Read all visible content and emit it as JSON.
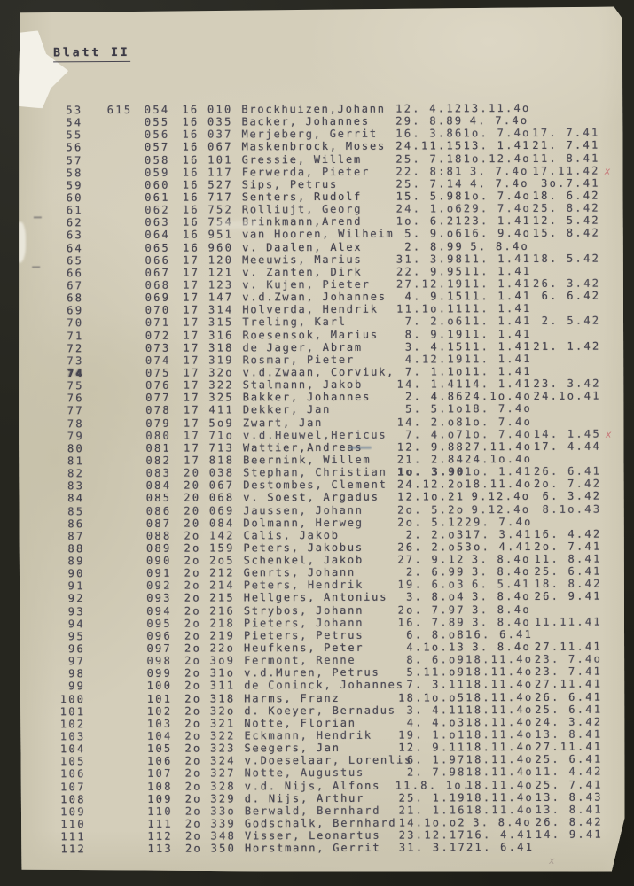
{
  "page": {
    "title": "Blatt II"
  },
  "marks": {
    "red_x": "x",
    "faint_x": "x"
  },
  "table": {
    "rows": [
      {
        "seq": "53",
        "extra": "615",
        "serial": "054",
        "camp": "16 010",
        "name": "Brockhuizen,Johann",
        "born": "12. 4.12",
        "d2": "13.11.4o",
        "d3": ""
      },
      {
        "seq": "54",
        "extra": "",
        "serial": "055",
        "camp": "16 035",
        "name": "Backer, Johannes",
        "born": "29. 8.89",
        "d2": "4. 7.4o",
        "d3": ""
      },
      {
        "seq": "55",
        "extra": "",
        "serial": "056",
        "camp": "16 037",
        "name": "Merjeberg, Gerrit",
        "born": "16. 3.86",
        "d2": "1o. 7.4o",
        "d3": "17. 7.41"
      },
      {
        "seq": "56",
        "extra": "",
        "serial": "057",
        "camp": "16 067",
        "name": "Maskenbrock, Moses",
        "born": "24.11.15",
        "d2": "13. 1.41",
        "d3": "21. 7.41"
      },
      {
        "seq": "57",
        "extra": "",
        "serial": "058",
        "camp": "16 101",
        "name": "Gressie, Willem",
        "born": "25. 7.18",
        "d2": "1o.12.4o",
        "d3": "11. 8.41"
      },
      {
        "seq": "58",
        "extra": "",
        "serial": "059",
        "camp": "16 117",
        "name": "Ferwerda, Pieter",
        "born": "22. 8:81",
        "d2": "3. 7.4o",
        "d3": "17.11.42",
        "mark": "red-x"
      },
      {
        "seq": "59",
        "extra": "",
        "serial": "060",
        "camp": "16 527",
        "name": "Sips, Petrus",
        "born": "25. 7.14",
        "d2": "4. 7.4o",
        "d3": "3o.7.41"
      },
      {
        "seq": "60",
        "extra": "",
        "serial": "061",
        "camp": "16 717",
        "name": "Senters, Rudolf",
        "born": "15. 5.98",
        "d2": "1o. 7.4o",
        "d3": "18. 6.42"
      },
      {
        "seq": "61",
        "extra": "",
        "serial": "062",
        "camp": "16 752",
        "name": "Rolliujt, Georg",
        "born": "24. 1.o6",
        "d2": "29. 7.4o",
        "d3": "25. 8.42"
      },
      {
        "seq": "62",
        "extra": "",
        "serial": "063",
        "camp": "16 754",
        "name": "Brinkmann,Arend",
        "born": "1o. 6.21",
        "d2": "23. 1.41",
        "d3": "12. 5.42"
      },
      {
        "seq": "63",
        "extra": "",
        "serial": "064",
        "camp": "16 951",
        "name": "van Hooren, Wilheim",
        "born": "5. 9.o6",
        "d2": "16. 9.4o",
        "d3": "15. 8.42"
      },
      {
        "seq": "64",
        "extra": "",
        "serial": "065",
        "camp": "16 960",
        "name": "v. Daalen, Alex",
        "born": "2. 8.99",
        "d2": "5. 8.4o",
        "d3": ""
      },
      {
        "seq": "65",
        "extra": "",
        "serial": "066",
        "camp": "17 120",
        "name": "Meeuwis, Marius",
        "born": "31. 3.98",
        "d2": "11. 1.41",
        "d3": "18. 5.42"
      },
      {
        "seq": "66",
        "extra": "",
        "serial": "067",
        "camp": "17 121",
        "name": "v. Zanten, Dirk",
        "born": "22. 9.95",
        "d2": "11. 1.41",
        "d3": ""
      },
      {
        "seq": "67",
        "extra": "",
        "serial": "068",
        "camp": "17 123",
        "name": "v. Kujen, Pieter",
        "born": "27.12.19",
        "d2": "11. 1.41",
        "d3": "26. 3.42"
      },
      {
        "seq": "68",
        "extra": "",
        "serial": "069",
        "camp": "17 147",
        "name": "v.d.Zwan, Johannes",
        "born": "4. 9.15",
        "d2": "11. 1.41",
        "d3": "6. 6.42"
      },
      {
        "seq": "69",
        "extra": "",
        "serial": "070",
        "camp": "17 314",
        "name": "Holverda, Hendrik",
        "born": "11.1o.11",
        "d2": "11. 1.41",
        "d3": ""
      },
      {
        "seq": "70",
        "extra": "",
        "serial": "071",
        "camp": "17 315",
        "name": "Treling, Karl",
        "born": "7. 2.o6",
        "d2": "11. 1.41",
        "d3": "2. 5.42"
      },
      {
        "seq": "71",
        "extra": "",
        "serial": "072",
        "camp": "17 316",
        "name": "Roesensok, Marius",
        "born": "8. 9.19",
        "d2": "11. 1.41",
        "d3": ""
      },
      {
        "seq": "72",
        "extra": "",
        "serial": "073",
        "camp": "17 318",
        "name": "de Jager, Abram",
        "born": "3. 4.15",
        "d2": "11. 1.41",
        "d3": "21. 1.42"
      },
      {
        "seq": "73",
        "extra": "",
        "serial": "074",
        "camp": "17 319",
        "name": "Rosmar, Pieter",
        "born": "4.12.19",
        "d2": "11. 1.41",
        "d3": ""
      },
      {
        "seq": "74",
        "extra": "",
        "serial": "075",
        "camp": "17 32o",
        "name": "v.d.Zwaan, Corviuk,",
        "born": "7. 1.1o",
        "d2": "11. 1.41",
        "d3": "",
        "seq_heavy": true
      },
      {
        "seq": "75",
        "extra": "",
        "serial": "076",
        "camp": "17 322",
        "name": "Stalmann, Jakob",
        "born": "14. 1.41",
        "d2": "14. 1.41",
        "d3": "23. 3.42"
      },
      {
        "seq": "76",
        "extra": "",
        "serial": "077",
        "camp": "17 325",
        "name": "Bakker, Johannes",
        "born": "2. 4.86",
        "d2": "24.1o.4o",
        "d3": "24.1o.41"
      },
      {
        "seq": "77",
        "extra": "",
        "serial": "078",
        "camp": "17 411",
        "name": "Dekker, Jan",
        "born": "5. 5.1o",
        "d2": "18. 7.4o",
        "d3": ""
      },
      {
        "seq": "78",
        "extra": "",
        "serial": "079",
        "camp": "17 5o9",
        "name": "Zwart, Jan",
        "born": "14. 2.o8",
        "d2": "1o. 7.4o",
        "d3": ""
      },
      {
        "seq": "79",
        "extra": "",
        "serial": "080",
        "camp": "17 71o",
        "name": "v.d.Heuwel,Hericus",
        "born": "7. 4.o7",
        "d2": "1o. 7.4o",
        "d3": "14. 1.45",
        "mark": "red-x"
      },
      {
        "seq": "80",
        "extra": "",
        "serial": "081",
        "camp": "17 713",
        "name": "Wattier,Andreas",
        "born": "12. 9.88",
        "d2": "27.11.4o",
        "d3": "17. 4.44",
        "mark": "blue-dash"
      },
      {
        "seq": "81",
        "extra": "",
        "serial": "082",
        "camp": "17 818",
        "name": "Beernink, Willem",
        "born": "21. 2.84",
        "d2": "24.1o.4o",
        "d3": ""
      },
      {
        "seq": "82",
        "extra": "",
        "serial": "083",
        "camp": "20 038",
        "name": "Stephan, Christian",
        "born": "1o. 3.90",
        "d2": "1o. 1.41",
        "d3": "26. 6.41",
        "born_bold": true
      },
      {
        "seq": "83",
        "extra": "",
        "serial": "084",
        "camp": "20 067",
        "name": "Destombes, Clement",
        "born": "24.12.2o",
        "d2": "18.11.4o",
        "d3": "2o. 7.42"
      },
      {
        "seq": "84",
        "extra": "",
        "serial": "085",
        "camp": "20 068",
        "name": "v. Soest, Argadus",
        "born": "12.1o.21",
        "d2": "9.12.4o",
        "d3": "6. 3.42"
      },
      {
        "seq": "85",
        "extra": "",
        "serial": "086",
        "camp": "20 069",
        "name": "Jaussen, Johann",
        "born": "2o. 5.2o",
        "d2": "9.12.4o",
        "d3": "8.1o.43"
      },
      {
        "seq": "86",
        "extra": "",
        "serial": "087",
        "camp": "20 084",
        "name": "Dolmann, Herweg",
        "born": "2o. 5.12",
        "d2": "29. 7.4o",
        "d3": ""
      },
      {
        "seq": "87",
        "extra": "",
        "serial": "088",
        "camp": "2o 142",
        "name": "Calis, Jakob",
        "born": "2. 2.o3",
        "d2": "17. 3.41",
        "d3": "16. 4.42"
      },
      {
        "seq": "88",
        "extra": "",
        "serial": "089",
        "camp": "2o 159",
        "name": "Peters, Jakobus",
        "born": "26. 2.o5",
        "d2": "3o. 4.41",
        "d3": "2o. 7.41"
      },
      {
        "seq": "89",
        "extra": "",
        "serial": "090",
        "camp": "2o 2o5",
        "name": "Schenkel, Jakob",
        "born": "27. 9.12",
        "d2": "3. 8.4o",
        "d3": "11. 8.41"
      },
      {
        "seq": "90",
        "extra": "",
        "serial": "091",
        "camp": "2o 212",
        "name": "Genrts, Johann",
        "born": "2. 6.99",
        "d2": "3. 8.4o",
        "d3": "25. 6.41"
      },
      {
        "seq": "91",
        "extra": "",
        "serial": "092",
        "camp": "2o 214",
        "name": "Peters, Hendrik",
        "born": "19. 6.o3",
        "d2": "6. 5.41",
        "d3": "18. 8.42"
      },
      {
        "seq": "92",
        "extra": "",
        "serial": "093",
        "camp": "2o 215",
        "name": "Hellgers, Antonius",
        "born": "3. 8.o4",
        "d2": "3. 8.4o",
        "d3": "26. 9.41"
      },
      {
        "seq": "93",
        "extra": "",
        "serial": "094",
        "camp": "2o 216",
        "name": "Strybos, Johann",
        "born": "2o. 7.97",
        "d2": "3. 8.4o",
        "d3": ""
      },
      {
        "seq": "94",
        "extra": "",
        "serial": "095",
        "camp": "2o 218",
        "name": "Pieters, Johann",
        "born": "16. 7.89",
        "d2": "3. 8.4o",
        "d3": "11.11.41"
      },
      {
        "seq": "95",
        "extra": "",
        "serial": "096",
        "camp": "2o 219",
        "name": "Pieters, Petrus",
        "born": "6. 8.o8",
        "d2": "16. 6.41",
        "d3": ""
      },
      {
        "seq": "96",
        "extra": "",
        "serial": "097",
        "camp": "2o 22o",
        "name": "Heufkens, Peter",
        "born": "4.1o.13",
        "d2": "3. 8.4o",
        "d3": "27.11.41"
      },
      {
        "seq": "97",
        "extra": "",
        "serial": "098",
        "camp": "2o 3o9",
        "name": "Fermont, Renne",
        "born": "8. 6.o9",
        "d2": "18.11.4o",
        "d3": "23. 7.4o"
      },
      {
        "seq": "98",
        "extra": "",
        "serial": "099",
        "camp": "2o 31o",
        "name": "v.d.Muren, Petrus",
        "born": "5.11.o9",
        "d2": "18.11.4o",
        "d3": "23. 7.41"
      },
      {
        "seq": "99",
        "extra": "",
        "serial": "100",
        "camp": "2o 311",
        "name": "de Coninck, Johannes",
        "born": "7. 3.11",
        "d2": "18.11.4o",
        "d3": "27.11.41"
      },
      {
        "seq": "100",
        "extra": "",
        "serial": "101",
        "camp": "2o 318",
        "name": "Harms, Franz",
        "born": "18.1o.o5",
        "d2": "18.11.4o",
        "d3": "26. 6.41"
      },
      {
        "seq": "101",
        "extra": "",
        "serial": "102",
        "camp": "2o 32o",
        "name": "d. Koeyer, Bernadus",
        "born": "3. 4.11",
        "d2": "18.11.4o",
        "d3": "25. 6.41"
      },
      {
        "seq": "102",
        "extra": "",
        "serial": "103",
        "camp": "2o 321",
        "name": "Notte, Florian",
        "born": "4. 4.o3",
        "d2": "18.11.4o",
        "d3": "24. 3.42"
      },
      {
        "seq": "103",
        "extra": "",
        "serial": "104",
        "camp": "2o 322",
        "name": "Eckmann, Hendrik",
        "born": "19. 1.o1",
        "d2": "18.11.4o",
        "d3": "13. 8.41"
      },
      {
        "seq": "104",
        "extra": "",
        "serial": "105",
        "camp": "2o 323",
        "name": "Seegers, Jan",
        "born": "12. 9.11",
        "d2": "18.11.4o",
        "d3": "27.11.41"
      },
      {
        "seq": "105",
        "extra": "",
        "serial": "106",
        "camp": "2o 324",
        "name": "v.Doeselaar, Lorenlis",
        "born": "6. 1.97",
        "d2": "18.11.4o",
        "d3": "25. 6.41"
      },
      {
        "seq": "106",
        "extra": "",
        "serial": "107",
        "camp": "2o 327",
        "name": "Notte, Augustus",
        "born": "2. 7.98",
        "d2": "18.11.4o",
        "d3": "11. 4.42"
      },
      {
        "seq": "107",
        "extra": "",
        "serial": "108",
        "camp": "2o 328",
        "name": "v.d. Nijs, Alfons",
        "born": "11.8. 1o.",
        "d2": "18.11.4o",
        "d3": "25. 7.41"
      },
      {
        "seq": "108",
        "extra": "",
        "serial": "109",
        "camp": "2o 329",
        "name": "d. Nijs, Arthur",
        "born": "25. 1.19",
        "d2": "18.11.4o",
        "d3": "13. 8.43"
      },
      {
        "seq": "109",
        "extra": "",
        "serial": "110",
        "camp": "2o 33o",
        "name": "Berwald, Bernhard",
        "born": "21. 1.16",
        "d2": "18.11.4o",
        "d3": "13. 8.41"
      },
      {
        "seq": "110",
        "extra": "",
        "serial": "111",
        "camp": "2o 339",
        "name": "Godschalk, Bernhard",
        "born": "14.1o.o2",
        "d2": "3. 8.4o",
        "d3": "26. 8.42"
      },
      {
        "seq": "111",
        "extra": "",
        "serial": "112",
        "camp": "2o 348",
        "name": "Visser, Leonartus",
        "born": "23.12.17",
        "d2": "16. 4.41",
        "d3": "14. 9.41"
      },
      {
        "seq": "112",
        "extra": "",
        "serial": "113",
        "camp": "2o 350",
        "name": "Horstmann, Gerrit",
        "born": "31. 3.17",
        "d2": "21. 6.41",
        "d3": ""
      }
    ]
  }
}
